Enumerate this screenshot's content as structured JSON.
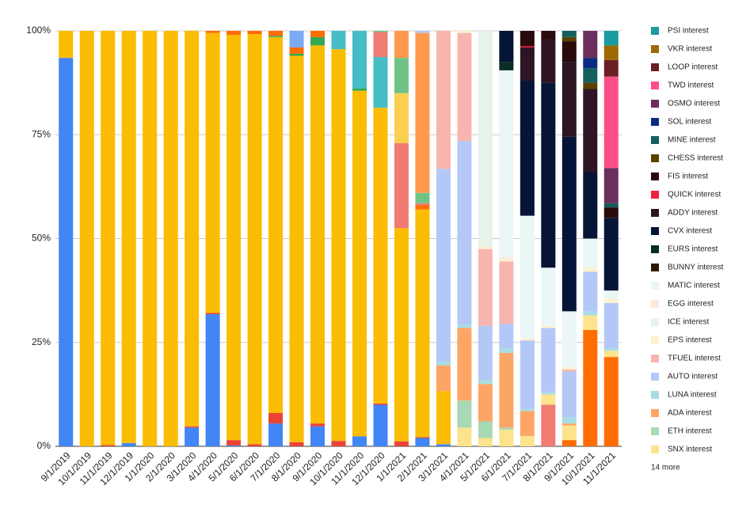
{
  "chart_data": {
    "type": "stacked_bar",
    "categories": [
      "9/1/2019",
      "10/1/2019",
      "11/1/2019",
      "12/1/2019",
      "1/1/2020",
      "2/1/2020",
      "3/1/2020",
      "4/1/2020",
      "5/1/2020",
      "6/1/2020",
      "7/1/2020",
      "8/1/2020",
      "9/1/2020",
      "10/1/2020",
      "11/1/2020",
      "12/1/2020",
      "1/1/2021",
      "2/1/2021",
      "3/1/2021",
      "4/1/2021",
      "5/1/2021",
      "6/1/2021",
      "7/1/2021",
      "8/1/2021",
      "9/1/2021",
      "10/1/2021",
      "11/1/2021"
    ],
    "ylim": [
      0,
      100
    ],
    "yticks": [
      {
        "value": 0,
        "label": "0%"
      },
      {
        "value": 25,
        "label": "25%"
      },
      {
        "value": 50,
        "label": "50%"
      },
      {
        "value": 75,
        "label": "75%"
      },
      {
        "value": 100,
        "label": "100%"
      }
    ],
    "legend_more": "14 more",
    "series": [
      {
        "name": null,
        "color": "#4285f4",
        "values": [
          93.5,
          0,
          0,
          0.8,
          0,
          0,
          4.5,
          31.8,
          0.2,
          0,
          5.5,
          0,
          4.8,
          0,
          2.4,
          10,
          0,
          2,
          0.5,
          0,
          0,
          0,
          0,
          0,
          0,
          0,
          0
        ]
      },
      {
        "name": null,
        "color": "#ea4335",
        "values": [
          0,
          0,
          0.3,
          0,
          0,
          0,
          0.3,
          0.3,
          1.3,
          0.5,
          2.5,
          1,
          0.7,
          1.3,
          0,
          0.3,
          1.2,
          0.2,
          0,
          0,
          0,
          0,
          0,
          0,
          0,
          0,
          0
        ]
      },
      {
        "name": null,
        "color": "#fbbc04",
        "values": [
          6.5,
          100,
          99.7,
          99.2,
          100,
          100,
          95.2,
          67.4,
          97.5,
          98.7,
          90.5,
          93,
          91,
          94.3,
          83.2,
          71.2,
          51.3,
          54.8,
          12.8,
          0,
          0,
          0,
          0,
          0,
          0,
          0,
          0
        ]
      },
      {
        "name": null,
        "color": "#34a853",
        "values": [
          0,
          0,
          0,
          0,
          0,
          0,
          0,
          0,
          0,
          0,
          0.3,
          0.5,
          2,
          0,
          0.5,
          0,
          0,
          0,
          0,
          0,
          0,
          0,
          0,
          0,
          0,
          0,
          0
        ]
      },
      {
        "name": null,
        "color": "#ff6d01",
        "values": [
          0,
          0,
          0,
          0,
          0,
          0,
          0,
          0.5,
          1,
          0.8,
          1.2,
          1.5,
          1.5,
          0,
          0,
          0,
          0,
          1,
          0,
          0,
          0,
          0,
          0,
          0,
          1.5,
          28,
          21.5
        ]
      },
      {
        "name": null,
        "color": "#46bdc6",
        "values": [
          0,
          0,
          0,
          0,
          0,
          0,
          0,
          0,
          0,
          0,
          0,
          0,
          0,
          4.4,
          13.9,
          12.2,
          0,
          0,
          0,
          0,
          0,
          0,
          0,
          0,
          0,
          0,
          0
        ]
      },
      {
        "name": null,
        "color": "#7baaf7",
        "values": [
          0,
          0,
          0,
          0,
          0,
          0,
          0,
          0,
          0,
          0,
          0,
          4,
          0,
          0,
          0,
          0,
          0,
          0,
          0,
          0,
          0,
          0,
          0,
          0,
          0,
          0,
          0
        ]
      },
      {
        "name": null,
        "color": "#f07b72",
        "values": [
          0,
          0,
          0,
          0,
          0,
          0,
          0,
          0,
          0,
          0,
          0,
          0,
          0,
          0,
          0,
          6,
          20.5,
          0.5,
          0,
          0,
          0,
          0,
          0,
          10,
          0,
          0,
          0
        ]
      },
      {
        "name": null,
        "color": "#fcd04f",
        "values": [
          0,
          0,
          0,
          0,
          0,
          0,
          0,
          0,
          0,
          0,
          0,
          0,
          0,
          0,
          0,
          0,
          12,
          0,
          0,
          0,
          0,
          0,
          0,
          0,
          0,
          0,
          0
        ]
      },
      {
        "name": null,
        "color": "#71c287",
        "values": [
          0,
          0,
          0,
          0,
          0,
          0,
          0,
          0,
          0,
          0,
          0,
          0,
          0,
          0,
          0,
          0.3,
          8.5,
          2.5,
          0,
          0,
          0,
          0,
          0,
          0,
          0,
          0,
          0
        ]
      },
      {
        "name": null,
        "color": "#ff994d",
        "values": [
          0,
          0,
          0,
          0,
          0,
          0,
          0,
          0,
          0,
          0,
          0,
          0,
          0,
          0,
          0,
          0,
          6.5,
          38.5,
          0,
          0,
          0,
          0,
          0,
          0,
          0,
          0,
          0
        ]
      },
      {
        "name": "SNX interest",
        "color": "#fde38b",
        "values": [
          0,
          0,
          0,
          0,
          0,
          0,
          0,
          0,
          0,
          0,
          0,
          0,
          0,
          0,
          0,
          0,
          0,
          0,
          0,
          4.5,
          2,
          4,
          2.5,
          2.5,
          3.5,
          3.5,
          1.5
        ]
      },
      {
        "name": "ETH interest",
        "color": "#a8d9b5",
        "values": [
          0,
          0,
          0,
          0,
          0,
          0,
          0,
          0,
          0,
          0,
          0,
          0,
          0,
          0,
          0,
          0,
          0,
          0,
          0,
          6.5,
          4,
          0.5,
          0,
          0,
          0,
          0,
          0
        ]
      },
      {
        "name": "ADA interest",
        "color": "#fda565",
        "values": [
          0,
          0,
          0,
          0,
          0,
          0,
          0,
          0,
          0,
          0,
          0,
          0,
          0,
          0,
          0,
          0,
          0,
          0,
          6.2,
          17.5,
          9,
          18,
          6,
          0,
          0.5,
          0,
          0
        ]
      },
      {
        "name": "LUNA interest",
        "color": "#a7dde2",
        "values": [
          0,
          0,
          0,
          0,
          0,
          0,
          0,
          0,
          0,
          0,
          0,
          0,
          0,
          0,
          0,
          0,
          0,
          0,
          0.8,
          0.8,
          1,
          1,
          0.5,
          0.5,
          1.5,
          1,
          0.5
        ]
      },
      {
        "name": "AUTO interest",
        "color": "#b4c8f7",
        "values": [
          0,
          0,
          0,
          0,
          0,
          0,
          0,
          0,
          0,
          0,
          0,
          0,
          0,
          0,
          0,
          0,
          0,
          0.5,
          46.5,
          44.2,
          13,
          6,
          16.5,
          15.5,
          11,
          9.5,
          11
        ]
      },
      {
        "name": "TFUEL interest",
        "color": "#f8b5b0",
        "values": [
          0,
          0,
          0,
          0,
          0,
          0,
          0,
          0,
          0,
          0,
          0,
          0,
          0,
          0,
          0,
          0,
          0,
          0,
          33.2,
          26,
          18.5,
          15,
          0,
          0,
          0.5,
          0,
          0
        ]
      },
      {
        "name": "EPS interest",
        "color": "#fff2cc",
        "values": [
          0,
          0,
          0,
          0,
          0,
          0,
          0,
          0,
          0,
          0,
          0,
          0,
          0,
          0,
          0,
          0,
          0,
          0,
          0,
          0.5,
          0.5,
          0.5,
          0.5,
          0.5,
          0.5,
          1,
          1
        ]
      },
      {
        "name": "ICE interest",
        "color": "#e6f3e8",
        "values": [
          0,
          0,
          0,
          0,
          0,
          0,
          0,
          0,
          0,
          0,
          0,
          0,
          0,
          0,
          0,
          0,
          0,
          0,
          0,
          0,
          52,
          0,
          0,
          0,
          0,
          0,
          0
        ]
      },
      {
        "name": "EGG interest",
        "color": "#fde9dc",
        "values": [
          0,
          0,
          0,
          0,
          0,
          0,
          0,
          0,
          0,
          0,
          0,
          0,
          0,
          0,
          0,
          0,
          0,
          0,
          0,
          0,
          0,
          0.5,
          0,
          0,
          0,
          0,
          0
        ]
      },
      {
        "name": "MATIC interest",
        "color": "#ebf6f6",
        "values": [
          0,
          0,
          0,
          0,
          0,
          0,
          0,
          0,
          0,
          0,
          0,
          0,
          0,
          0,
          0,
          0,
          0,
          0,
          0,
          0,
          0,
          45,
          29.5,
          14,
          13.5,
          7,
          2
        ]
      },
      {
        "name": "BUNNY interest",
        "color": "#2b1800",
        "values": [
          0,
          0,
          0,
          0,
          0,
          0,
          0,
          0,
          0,
          0,
          0,
          0,
          0,
          0,
          0,
          0,
          0,
          0,
          0,
          0,
          0,
          0,
          0,
          0,
          0,
          0,
          0
        ]
      },
      {
        "name": "EURS interest",
        "color": "#092d24",
        "values": [
          0,
          0,
          0,
          0,
          0,
          0,
          0,
          0,
          0,
          0,
          0,
          0,
          0,
          0,
          0,
          0,
          0,
          0,
          0,
          0,
          0,
          2,
          0,
          0,
          0,
          0,
          0
        ]
      },
      {
        "name": "CVX interest",
        "color": "#061437",
        "values": [
          0,
          0,
          0,
          0,
          0,
          0,
          0,
          0,
          0,
          0,
          0,
          0,
          0,
          0,
          0,
          0,
          0,
          0,
          0,
          0,
          0,
          7.5,
          32.5,
          44.5,
          42,
          16,
          17.5
        ]
      },
      {
        "name": "ADDY interest",
        "color": "#2d1524",
        "values": [
          0,
          0,
          0,
          0,
          0,
          0,
          0,
          0,
          0,
          0,
          0,
          0,
          0,
          0,
          0,
          0,
          0,
          0,
          0,
          0,
          0,
          0,
          8,
          10.5,
          18,
          20,
          0
        ]
      },
      {
        "name": "QUICK interest",
        "color": "#f2213f",
        "values": [
          0,
          0,
          0,
          0,
          0,
          0,
          0,
          0,
          0,
          0,
          0,
          0,
          0,
          0,
          0,
          0,
          0,
          0,
          0,
          0,
          0,
          0,
          0.3,
          0,
          0,
          0,
          0
        ]
      },
      {
        "name": "FIS interest",
        "color": "#2a0b0b",
        "values": [
          0,
          0,
          0,
          0,
          0,
          0,
          0,
          0,
          0,
          0,
          0,
          0,
          0,
          0,
          0,
          0,
          0,
          0,
          0,
          0,
          0,
          0,
          3.7,
          2,
          5,
          0,
          2.5
        ]
      },
      {
        "name": "CHESS interest",
        "color": "#5b4100",
        "values": [
          0,
          0,
          0,
          0,
          0,
          0,
          0,
          0,
          0,
          0,
          0,
          0,
          0,
          0,
          0,
          0,
          0,
          0,
          0,
          0,
          0,
          0,
          0,
          0,
          1,
          1.5,
          0
        ]
      },
      {
        "name": "MINE interest",
        "color": "#13605c",
        "values": [
          0,
          0,
          0,
          0,
          0,
          0,
          0,
          0,
          0,
          0,
          0,
          0,
          0,
          0,
          0,
          0,
          0,
          0,
          0,
          0,
          0,
          0,
          0,
          0,
          1.5,
          3.5,
          1
        ]
      },
      {
        "name": "SOL interest",
        "color": "#0b2b82",
        "values": [
          0,
          0,
          0,
          0,
          0,
          0,
          0,
          0,
          0,
          0,
          0,
          0,
          0,
          0,
          0,
          0,
          0,
          0,
          0,
          0,
          0,
          0,
          0,
          0,
          0,
          2.5,
          0
        ]
      },
      {
        "name": "OSMO interest",
        "color": "#6b2f5e",
        "values": [
          0,
          0,
          0,
          0,
          0,
          0,
          0,
          0,
          0,
          0,
          0,
          0,
          0,
          0,
          0,
          0,
          0,
          0,
          0,
          0,
          0,
          0,
          0,
          0,
          0,
          6.5,
          8.5
        ]
      },
      {
        "name": "TWD interest",
        "color": "#ff4e87",
        "values": [
          0,
          0,
          0,
          0,
          0,
          0,
          0,
          0,
          0,
          0,
          0,
          0,
          0,
          0,
          0,
          0,
          0,
          0,
          0,
          0,
          0,
          0,
          0,
          0,
          0,
          0,
          22
        ]
      },
      {
        "name": "LOOP interest",
        "color": "#6b1f24",
        "values": [
          0,
          0,
          0,
          0,
          0,
          0,
          0,
          0,
          0,
          0,
          0,
          0,
          0,
          0,
          0,
          0,
          0,
          0,
          0,
          0,
          0,
          0,
          0,
          0,
          0,
          0,
          4
        ]
      },
      {
        "name": "VKR interest",
        "color": "#9c6a00",
        "values": [
          0,
          0,
          0,
          0,
          0,
          0,
          0,
          0,
          0,
          0,
          0,
          0,
          0,
          0,
          0,
          0,
          0,
          0,
          0,
          0,
          0,
          0,
          0,
          0,
          0,
          0,
          3.5
        ]
      },
      {
        "name": "PSI interest",
        "color": "#1a9ba1",
        "values": [
          0,
          0,
          0,
          0,
          0,
          0,
          0,
          0,
          0,
          0,
          0,
          0,
          0,
          0,
          0,
          0,
          0,
          0,
          0,
          0,
          0,
          0,
          0,
          0,
          0,
          0,
          3.5
        ]
      }
    ]
  }
}
